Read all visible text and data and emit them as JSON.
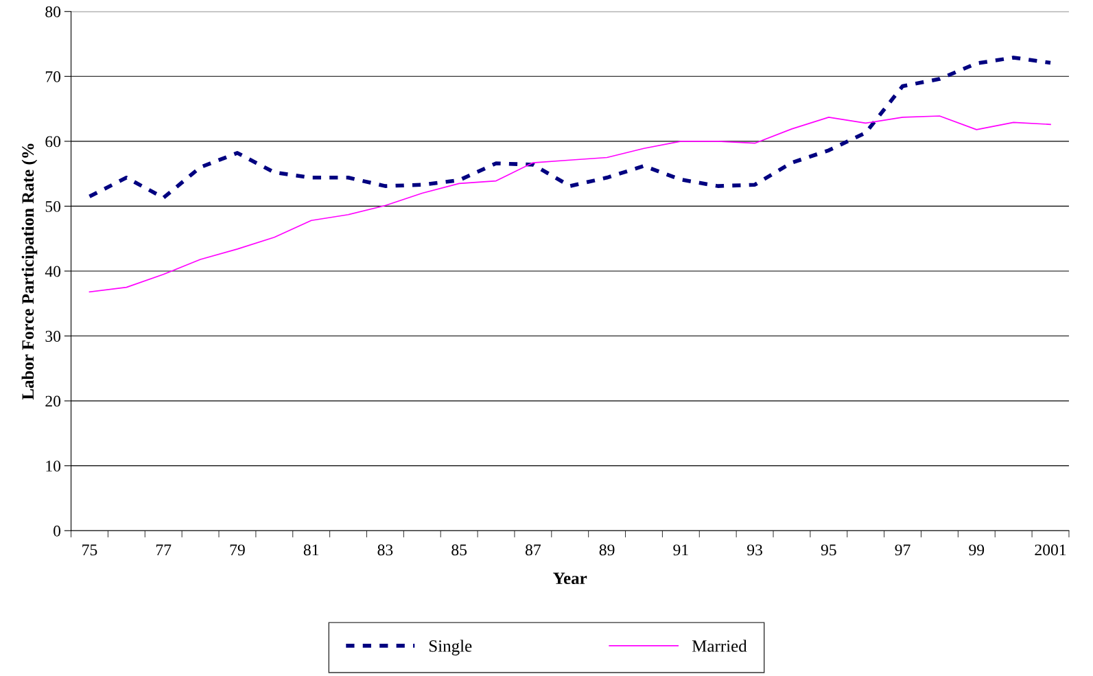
{
  "chart_data": {
    "type": "line",
    "xlabel": "Year",
    "ylabel": "Labor Force Participation Rate (%",
    "categories": [
      "75",
      null,
      "77",
      null,
      "79",
      null,
      "81",
      null,
      "83",
      null,
      "85",
      null,
      "87",
      null,
      "89",
      null,
      "91",
      null,
      "93",
      null,
      "95",
      null,
      "97",
      null,
      "99",
      null,
      "2001"
    ],
    "series": [
      {
        "name": "Single",
        "color": "#000080",
        "line_style": "dashed",
        "values": [
          51.5,
          54.4,
          51.3,
          56.0,
          58.2,
          55.2,
          54.4,
          54.4,
          53.1,
          53.3,
          54.0,
          56.6,
          56.4,
          53.1,
          54.4,
          56.2,
          54.1,
          53.1,
          53.3,
          56.7,
          58.6,
          61.3,
          68.5,
          69.6,
          72.0,
          72.9,
          72.1
        ]
      },
      {
        "name": "Married",
        "color": "#ff00ff",
        "line_style": "solid",
        "values": [
          36.8,
          37.5,
          39.5,
          41.8,
          43.4,
          45.2,
          47.8,
          48.7,
          50.1,
          52.0,
          53.5,
          53.9,
          56.7,
          57.1,
          57.5,
          58.9,
          60.0,
          60.0,
          59.7,
          61.9,
          63.7,
          62.8,
          63.7,
          63.9,
          61.8,
          62.9,
          62.6
        ]
      }
    ],
    "ylim": [
      0,
      80
    ],
    "yticks": [
      0,
      10,
      20,
      30,
      40,
      50,
      60,
      70,
      80
    ],
    "grid": "y",
    "legend": "bottom"
  }
}
